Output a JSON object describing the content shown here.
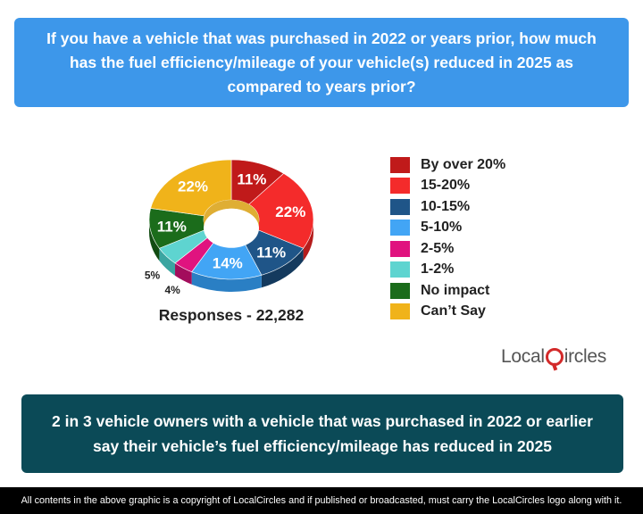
{
  "question": "If you have a vehicle that was purchased in 2022 or years prior, how much has the fuel efficiency/mileage of your vehicle(s) reduced in 2025 as compared to years prior?",
  "responses": "Responses - 22,282",
  "finding": "2 in 3 vehicle owners with a vehicle that was purchased in 2022 or earlier say their vehicle’s fuel efficiency/mileage has reduced in 2025",
  "footer": "All contents in the above graphic is a copyright of LocalCircles and if published or broadcasted, must carry the LocalCircles logo along with it.",
  "logo": {
    "part1": "Local",
    "part2": "ircles"
  },
  "chart_data": {
    "type": "pie",
    "style": "3d-donut",
    "legend_position": "right",
    "slices": [
      {
        "label": "By over 20%",
        "value": 11,
        "display": "11%",
        "color": "#c01a1a",
        "side": "#8f1010"
      },
      {
        "label": "15-20%",
        "value": 22,
        "display": "22%",
        "color": "#f42b2b",
        "side": "#b51c1c"
      },
      {
        "label": "10-15%",
        "value": 11,
        "display": "11%",
        "color": "#1f5588",
        "side": "#143a5e"
      },
      {
        "label": "5-10%",
        "value": 14,
        "display": "14%",
        "color": "#42a5f5",
        "side": "#2a7fc4"
      },
      {
        "label": "2-5%",
        "value": 4,
        "display": "4%",
        "color": "#e0137f",
        "side": "#a30d5c"
      },
      {
        "label": "1-2%",
        "value": 5,
        "display": "5%",
        "color": "#5ed4d0",
        "side": "#3ba5a1"
      },
      {
        "label": "No impact",
        "value": 11,
        "display": "11%",
        "color": "#1b6c1b",
        "side": "#124c12"
      },
      {
        "label": "Can’t Say",
        "value": 22,
        "display": "22%",
        "color": "#f0b31a",
        "side": "#c08a0a"
      }
    ]
  }
}
